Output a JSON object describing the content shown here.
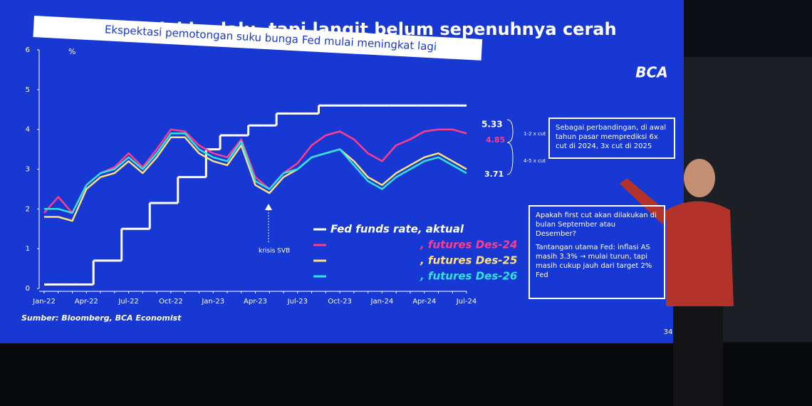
{
  "slide": {
    "headline": "udai mulai berlalu, tapi langit belum sepenuhnya cerah",
    "logo": "BCA",
    "source": "Sumber: Bloomberg, BCA Economist",
    "page": "34",
    "note_top": "Sebagai perbandingan, di awal tahun pasar memprediksi 6x cut di 2024, 3x cut di 2025",
    "notes": [
      "Apakah first cut akan dilakukan di bulan September atau Desember?",
      "Tantangan utama Fed: inflasi AS masih 3.3% → mulai turun, tapi masih cukup jauh dari target 2% Fed"
    ]
  },
  "chart_data": {
    "type": "line",
    "title": "Ekspektasi pemotongan suku bunga Fed mulai meningkat lagi",
    "ylabel": "%",
    "categories": [
      "Jan-22",
      null,
      null,
      "Apr-22",
      null,
      null,
      "Jul-22",
      null,
      null,
      "Oct-22",
      null,
      null,
      "Jan-23",
      null,
      null,
      "Apr-23",
      null,
      null,
      "Jul-23",
      null,
      null,
      "Oct-23",
      null,
      null,
      "Jan-24",
      null,
      null,
      "Apr-24",
      null,
      null,
      "Jul-24"
    ],
    "ylim": [
      0,
      6
    ],
    "yticks": [
      0,
      1,
      2,
      3,
      4,
      5,
      6
    ],
    "series": [
      {
        "name": "Fed funds rate, aktual",
        "color": "#ffffff",
        "step": true,
        "values": [
          0.1,
          0.1,
          0.1,
          0.1,
          0.7,
          0.7,
          1.5,
          1.5,
          2.15,
          2.15,
          2.8,
          2.8,
          3.5,
          3.85,
          3.85,
          4.1,
          4.1,
          4.4,
          4.4,
          4.4,
          4.6,
          4.6,
          4.6,
          4.6,
          4.6,
          4.6,
          4.6,
          4.6,
          4.6,
          4.6,
          4.6
        ]
      },
      {
        "name": ", futures Des-24",
        "color": "#ff3d8b",
        "values": [
          1.9,
          2.3,
          1.9,
          2.6,
          2.9,
          3.05,
          3.4,
          3.05,
          3.5,
          4.0,
          3.95,
          3.6,
          3.4,
          3.3,
          3.75,
          2.8,
          2.5,
          2.9,
          3.15,
          3.6,
          3.85,
          3.95,
          3.75,
          3.4,
          3.2,
          3.6,
          3.75,
          3.95,
          4.0,
          4.0,
          3.9
        ]
      },
      {
        "name": ", futures Des-25",
        "color": "#ffe27a",
        "values": [
          1.8,
          1.8,
          1.7,
          2.5,
          2.8,
          2.9,
          3.2,
          2.9,
          3.3,
          3.8,
          3.8,
          3.4,
          3.2,
          3.1,
          3.6,
          2.6,
          2.4,
          2.8,
          3.0,
          3.3,
          3.4,
          3.5,
          3.2,
          2.8,
          2.6,
          2.9,
          3.1,
          3.3,
          3.4,
          3.2,
          3.0
        ]
      },
      {
        "name": ", futures Des-26",
        "color": "#2fe3e0",
        "values": [
          2.0,
          2.0,
          1.9,
          2.6,
          2.9,
          3.0,
          3.3,
          3.0,
          3.4,
          3.9,
          3.9,
          3.5,
          3.3,
          3.2,
          3.7,
          2.7,
          2.5,
          2.9,
          3.0,
          3.3,
          3.4,
          3.5,
          3.1,
          2.7,
          2.5,
          2.8,
          3.0,
          3.2,
          3.3,
          3.1,
          2.9
        ]
      }
    ],
    "annotations": [
      "5.33",
      "4.85",
      "3.71",
      "1-2 x cut",
      "4-5 x cut",
      "krisis SVB"
    ]
  }
}
